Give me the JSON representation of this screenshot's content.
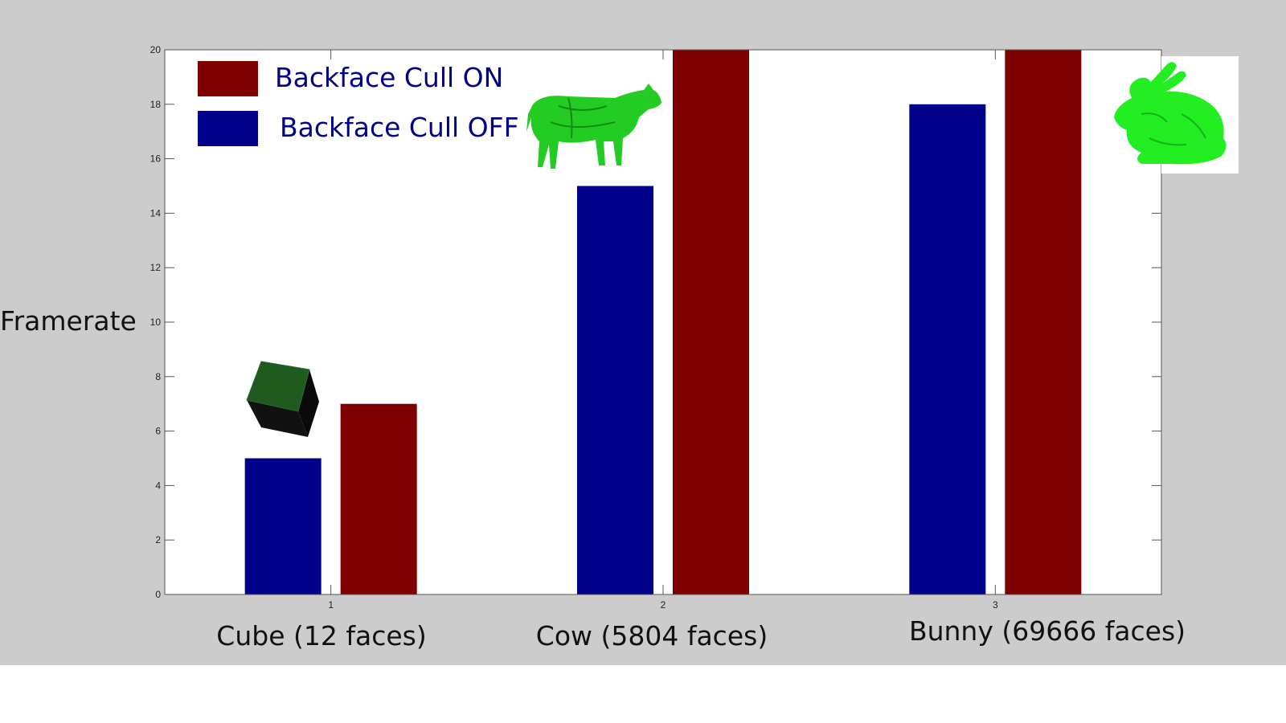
{
  "chart_data": {
    "type": "bar",
    "title": "",
    "ylabel": "Framerate",
    "xlabel": "",
    "x": [
      1,
      2,
      3
    ],
    "category_labels": [
      "Cube (12 faces)",
      "Cow (5804 faces)",
      "Bunny (69666 faces)"
    ],
    "x_tick_labels": [
      "1",
      "2",
      "3"
    ],
    "ylim": [
      0,
      20
    ],
    "y_ticks": [
      0,
      2,
      4,
      6,
      8,
      10,
      12,
      14,
      16,
      18,
      20
    ],
    "grid": false,
    "legend_position": "top-left",
    "series": [
      {
        "name": "Backface Cull OFF",
        "values": [
          5,
          15,
          18
        ],
        "color": "#00008b"
      },
      {
        "name": "Backface Cull ON",
        "values": [
          7,
          20,
          20
        ],
        "color": "#800000"
      }
    ],
    "legend_order": [
      1,
      0
    ]
  },
  "colors": {
    "figure_background": "#cccccc",
    "axes_background": "#ffffff",
    "legend_text": "#00008b",
    "model_green": "#22cc22"
  },
  "icons": [
    "cube-icon",
    "cow-icon",
    "bunny-icon"
  ]
}
